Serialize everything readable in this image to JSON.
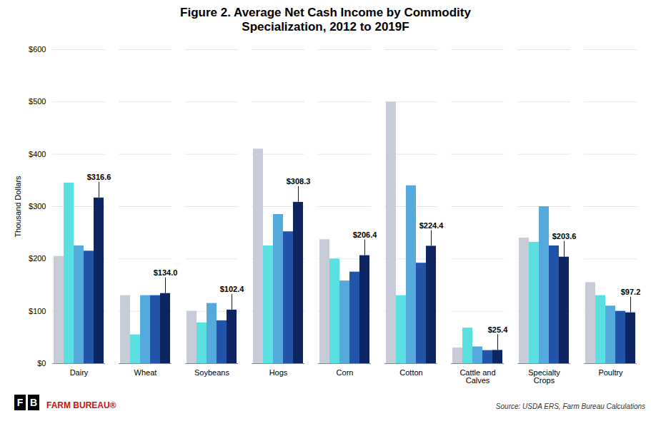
{
  "chart_data": {
    "type": "bar",
    "title": "Figure 2. Average Net Cash Income by Commodity\nSpecialization, 2012 to 2019F",
    "ylabel": "Thousand Dollars",
    "categories": [
      "Dairy",
      "Wheat",
      "Soybeans",
      "Hogs",
      "Corn",
      "Cotton",
      "Cattle and\nCalves",
      "Specialty\nCrops",
      "Poultry"
    ],
    "series": [
      {
        "color": "#c8ccd8",
        "values": [
          205,
          130,
          100,
          410,
          237,
          500,
          30,
          240,
          155
        ]
      },
      {
        "color": "#5ae0e0",
        "values": [
          345,
          55,
          78,
          225,
          200,
          130,
          68,
          232,
          130
        ]
      },
      {
        "color": "#55aadd",
        "values": [
          225,
          130,
          115,
          285,
          158,
          340,
          32,
          300,
          110
        ]
      },
      {
        "color": "#2255aa",
        "values": [
          215,
          130,
          82,
          252,
          175,
          192,
          25,
          225,
          100
        ]
      },
      {
        "color": "#0d2560",
        "values": [
          316.6,
          134.0,
          102.4,
          308.3,
          206.4,
          224.4,
          25.4,
          203.6,
          97.2
        ],
        "data_labels": true,
        "value_labels": [
          "$316.6",
          "$134.0",
          "$102.4",
          "$308.3",
          "$206.4",
          "$224.4",
          "$25.4",
          "$203.6",
          "$97.2"
        ]
      }
    ],
    "ylim": [
      0,
      600
    ],
    "yticks": [
      {
        "value": 0,
        "label": "$0"
      },
      {
        "value": 100,
        "label": "$100"
      },
      {
        "value": 200,
        "label": "$200"
      },
      {
        "value": 300,
        "label": "$300"
      },
      {
        "value": 400,
        "label": "$400"
      },
      {
        "value": 500,
        "label": "$500"
      },
      {
        "value": 600,
        "label": "$600"
      }
    ],
    "grid": true,
    "source": "Source: USDA ERS, Farm Bureau Calculations",
    "logo_letters": [
      "F",
      "B"
    ],
    "logo_text": "FARM BUREAU®"
  }
}
